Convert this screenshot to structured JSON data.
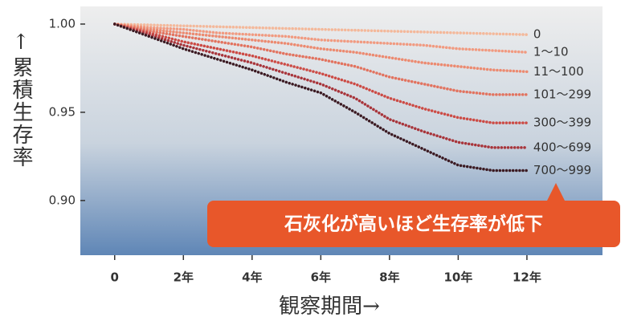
{
  "chart_data": {
    "type": "line",
    "y_label": "↑累積生存率",
    "x_label": "観察期間→",
    "annotation": "石灰化が高いほど生存率が低下",
    "x": [
      0,
      1,
      2,
      3,
      4,
      5,
      6,
      7,
      8,
      9,
      10,
      11,
      12
    ],
    "xlim": [
      -1,
      14.2
    ],
    "xticks": [
      0,
      {
        "value": 2,
        "label": "2年"
      },
      {
        "value": 4,
        "label": "4年"
      },
      {
        "value": 6,
        "label": "6年"
      },
      {
        "value": 8,
        "label": "8年"
      },
      {
        "value": 10,
        "label": "10年"
      },
      {
        "value": 12,
        "label": "12年"
      }
    ],
    "ylim": [
      0.869,
      1.01
    ],
    "yticks": [
      {
        "value": 0.9,
        "label": "0.90"
      },
      {
        "value": 0.95,
        "label": "0.95"
      },
      {
        "value": 1.0,
        "label": "1.00"
      }
    ],
    "series": [
      {
        "name": "0",
        "color": "#f4b89a",
        "values": [
          1,
          0.9995,
          0.999,
          0.9985,
          0.998,
          0.9975,
          0.997,
          0.9965,
          0.996,
          0.9955,
          0.995,
          0.9945,
          0.994
        ]
      },
      {
        "name": "1〜10",
        "color": "#f19a80",
        "values": [
          1,
          0.998,
          0.997,
          0.995,
          0.994,
          0.993,
          0.991,
          0.99,
          0.989,
          0.988,
          0.986,
          0.985,
          0.984
        ]
      },
      {
        "name": "11〜100",
        "color": "#ec8a70",
        "values": [
          1,
          0.997,
          0.995,
          0.993,
          0.991,
          0.989,
          0.986,
          0.984,
          0.981,
          0.978,
          0.976,
          0.974,
          0.973
        ]
      },
      {
        "name": "101〜299",
        "color": "#e2735f",
        "values": [
          1,
          0.996,
          0.993,
          0.99,
          0.987,
          0.983,
          0.98,
          0.976,
          0.97,
          0.966,
          0.962,
          0.96,
          0.96
        ]
      },
      {
        "name": "300〜399",
        "color": "#cc4a44",
        "values": [
          1,
          0.995,
          0.99,
          0.986,
          0.982,
          0.977,
          0.972,
          0.966,
          0.958,
          0.952,
          0.947,
          0.944,
          0.944
        ]
      },
      {
        "name": "400〜699",
        "color": "#a8343a",
        "values": [
          1,
          0.994,
          0.988,
          0.983,
          0.978,
          0.972,
          0.966,
          0.958,
          0.946,
          0.939,
          0.933,
          0.93,
          0.93
        ]
      },
      {
        "name": "700〜999",
        "color": "#3b1a22",
        "values": [
          1,
          0.993,
          0.986,
          0.98,
          0.974,
          0.967,
          0.961,
          0.95,
          0.938,
          0.929,
          0.92,
          0.917,
          0.917
        ]
      }
    ]
  }
}
